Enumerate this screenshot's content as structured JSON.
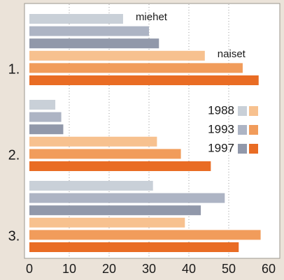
{
  "chart_data": {
    "type": "bar",
    "orientation": "horizontal",
    "categories": [
      "1.",
      "2.",
      "3."
    ],
    "years": [
      "1988",
      "1993",
      "1997"
    ],
    "series": [
      {
        "name": "miehet",
        "colors": [
          "#c9d0d8",
          "#adb4c4",
          "#9198aa"
        ],
        "values": [
          [
            23.5,
            30,
            32.5
          ],
          [
            6.5,
            8,
            8.5
          ],
          [
            31,
            49,
            43
          ]
        ]
      },
      {
        "name": "naiset",
        "colors": [
          "#f7c18f",
          "#f19c5b",
          "#e96c24"
        ],
        "values": [
          [
            44,
            53.5,
            57.5
          ],
          [
            32,
            38,
            45.5
          ],
          [
            39,
            58,
            52.5
          ]
        ]
      }
    ],
    "xlim": [
      0,
      60
    ],
    "xticks": [
      0,
      10,
      20,
      30,
      40,
      50,
      60
    ],
    "grid": true
  }
}
